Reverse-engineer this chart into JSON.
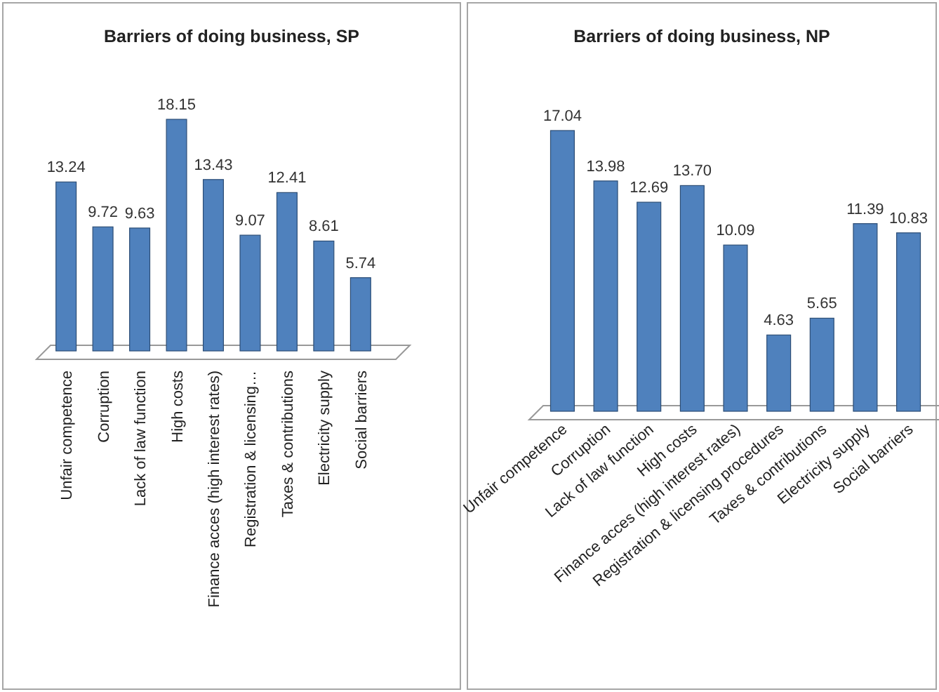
{
  "chart_data": [
    {
      "type": "bar",
      "title": "Barriers of doing business, SP",
      "categories": [
        "Unfair competence",
        "Corruption",
        "Lack of law function",
        "High costs",
        "Finance acces (high interest rates)",
        "Registration & licensing…",
        "Taxes & contributions",
        "Electricity supply",
        "Social barriers"
      ],
      "values": [
        13.24,
        9.72,
        9.63,
        18.15,
        13.43,
        9.07,
        12.41,
        8.61,
        5.74
      ],
      "color": "#4f81bd",
      "data_labels": true
    },
    {
      "type": "bar",
      "title": "Barriers of doing business, NP",
      "categories": [
        "Unfair competence",
        "Corruption",
        "Lack of law function",
        "High costs",
        "Finance acces (high interest rates)",
        "Registration & licensing procedures",
        "Taxes & contributions",
        "Electricity supply",
        "Social barriers"
      ],
      "values": [
        17.04,
        13.98,
        12.69,
        13.7,
        10.09,
        4.63,
        5.65,
        11.39,
        10.83
      ],
      "value_labels": [
        "17.04",
        "13.98",
        "12.69",
        "13.70",
        "10.09",
        "4.63",
        "5.65",
        "11.39",
        "10.83"
      ],
      "color": "#4f81bd"
    }
  ]
}
